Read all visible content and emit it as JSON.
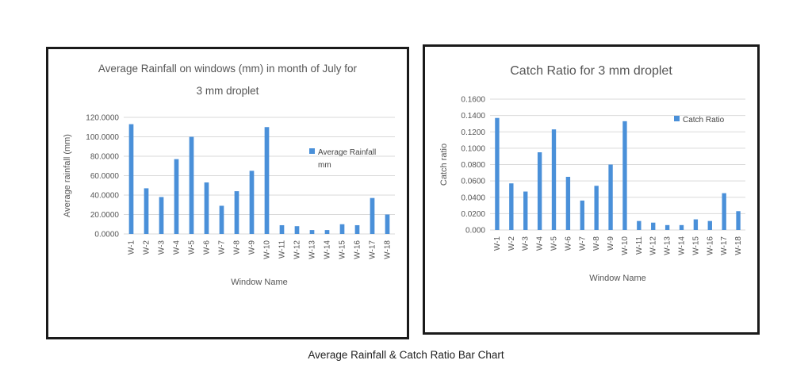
{
  "caption": "Average Rainfall & Catch Ratio Bar Chart",
  "bar_color": "#4a90d9",
  "grid_color": "#d9d9d9",
  "chart_data": [
    {
      "type": "bar",
      "title": "Average Rainfall on windows (mm) in month of July for 3 mm droplet",
      "title_lines": [
        "Average Rainfall on windows (mm) in month of July for",
        "3 mm droplet"
      ],
      "xlabel": "Window Name",
      "ylabel": "Average rainfall (mm)",
      "ylim": [
        0,
        120
      ],
      "yticks": [
        0,
        20,
        40,
        60,
        80,
        100,
        120
      ],
      "ytick_labels": [
        "0.0000",
        "20.0000",
        "40.0000",
        "60.0000",
        "80.0000",
        "100.0000",
        "120.0000"
      ],
      "categories": [
        "W-1",
        "W-2",
        "W-3",
        "W-4",
        "W-5",
        "W-6",
        "W-7",
        "W-8",
        "W-9",
        "W-10",
        "W-11",
        "W-12",
        "W-13",
        "W-14",
        "W-15",
        "W-16",
        "W-17",
        "W-18"
      ],
      "series": [
        {
          "name": "Average Rainfall mm",
          "values": [
            113,
            47,
            38,
            77,
            100,
            53,
            29,
            44,
            65,
            110,
            9,
            8,
            4,
            4,
            10,
            9,
            37,
            20
          ]
        }
      ],
      "legend": {
        "lines": [
          "Average Rainfall",
          "mm"
        ],
        "position": "right"
      },
      "grid": true
    },
    {
      "type": "bar",
      "title": "Catch Ratio for 3 mm droplet",
      "title_lines": [
        "Catch Ratio for 3 mm droplet"
      ],
      "xlabel": "Window Name",
      "ylabel": "Catch ratio",
      "ylim": [
        0,
        0.16
      ],
      "yticks": [
        0,
        0.02,
        0.04,
        0.06,
        0.08,
        0.1,
        0.12,
        0.14,
        0.16
      ],
      "ytick_labels": [
        "0.000",
        "0.0200",
        "0.0400",
        "0.0600",
        "0.0800",
        "0.1000",
        "0.1200",
        "0.1400",
        "0.1600"
      ],
      "categories": [
        "W-1",
        "W-2",
        "W-3",
        "W-4",
        "W-5",
        "W-6",
        "W-7",
        "W-8",
        "W-9",
        "W-10",
        "W-11",
        "W-12",
        "W-13",
        "W-14",
        "W-15",
        "W-16",
        "W-17",
        "W-18"
      ],
      "series": [
        {
          "name": "Catch Ratio",
          "values": [
            0.137,
            0.057,
            0.047,
            0.095,
            0.123,
            0.065,
            0.036,
            0.054,
            0.08,
            0.133,
            0.011,
            0.009,
            0.006,
            0.006,
            0.013,
            0.011,
            0.045,
            0.023
          ]
        }
      ],
      "legend": {
        "lines": [
          "Catch Ratio"
        ],
        "position": "top-right"
      },
      "grid": true
    }
  ]
}
